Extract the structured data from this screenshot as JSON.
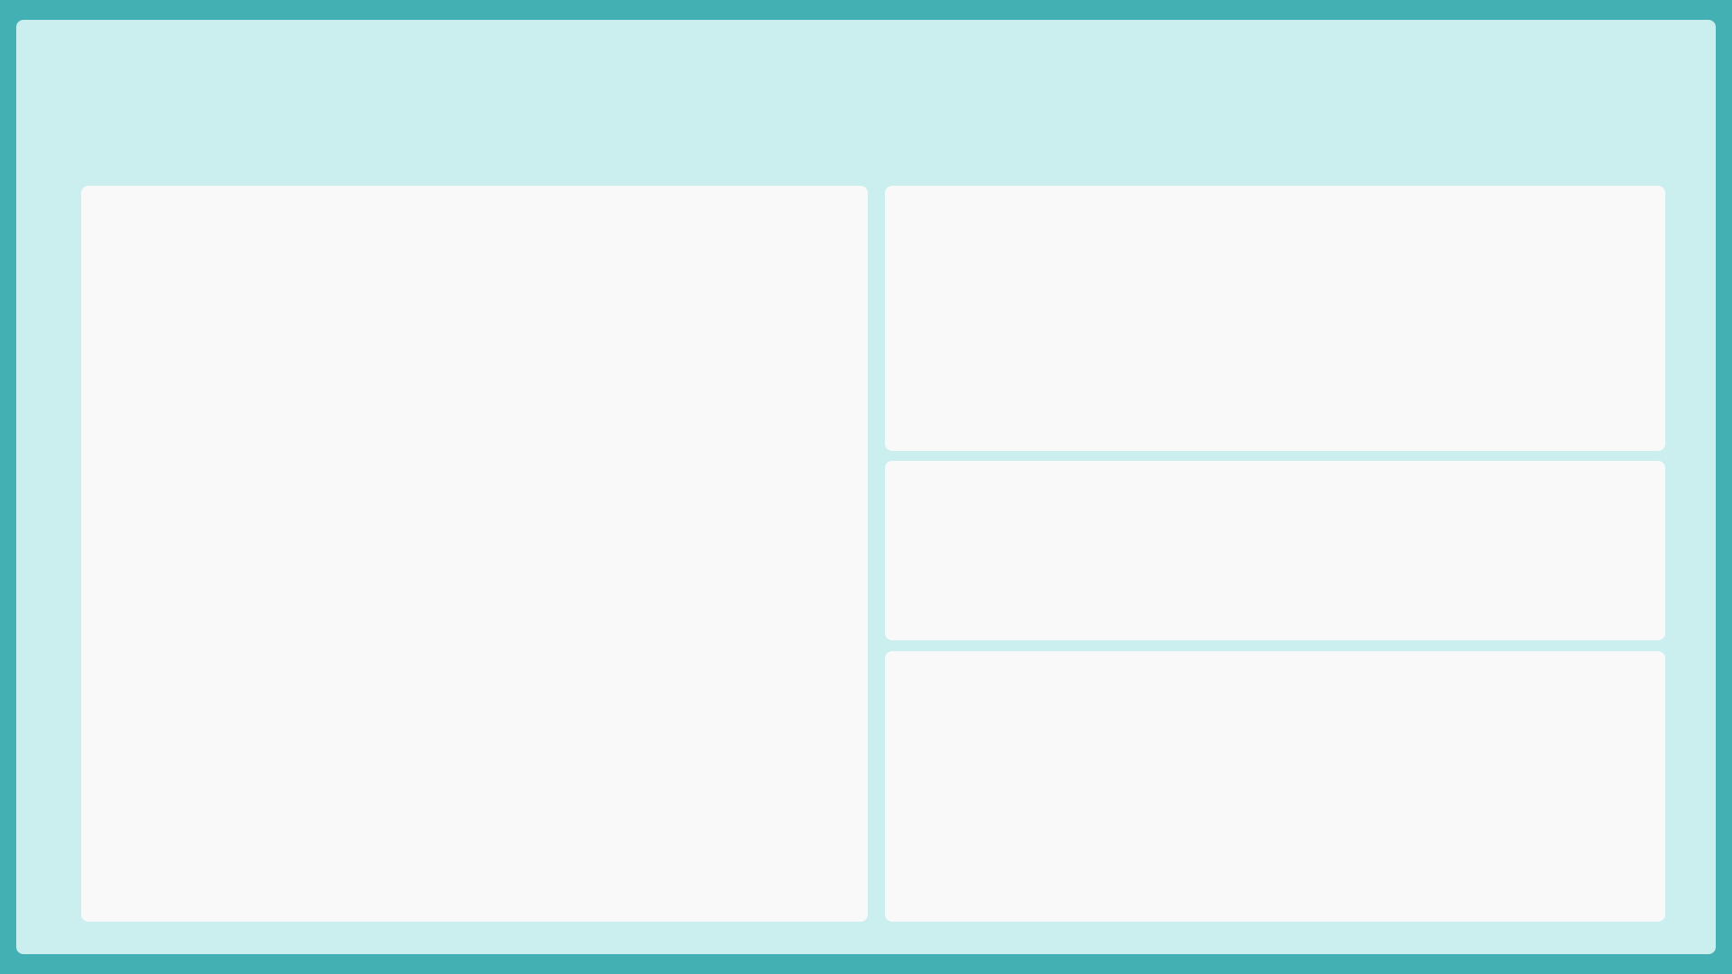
{
  "theme": {
    "frame_color": "#43b1b4",
    "surface_color": "#cbeeee",
    "panel_color": "#f9f9f9"
  },
  "panels": [
    {
      "id": "left",
      "content": ""
    },
    {
      "id": "right-top",
      "content": ""
    },
    {
      "id": "right-middle",
      "content": ""
    },
    {
      "id": "right-bottom",
      "content": ""
    }
  ]
}
